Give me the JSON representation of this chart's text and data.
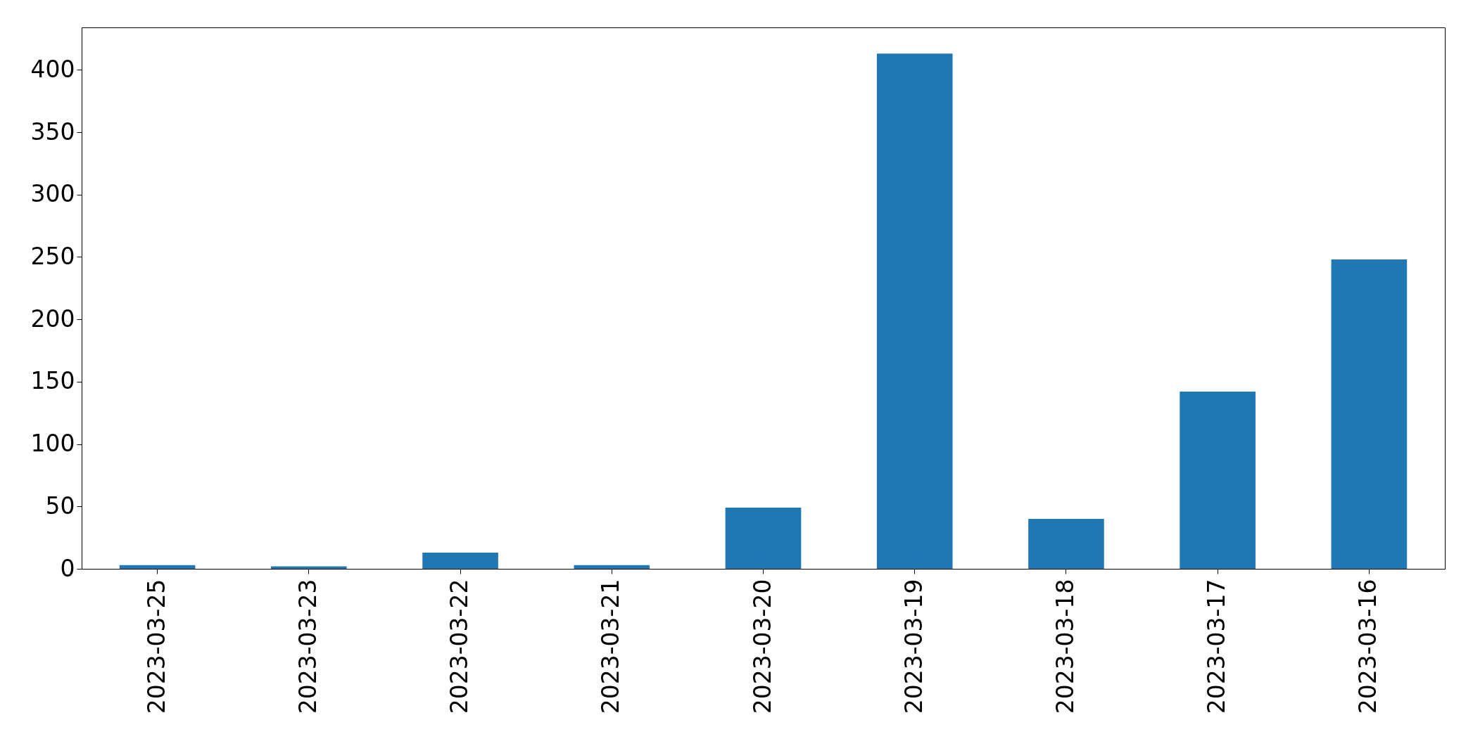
{
  "chart_data": {
    "type": "bar",
    "categories": [
      "2023-03-25",
      "2023-03-23",
      "2023-03-22",
      "2023-03-21",
      "2023-03-20",
      "2023-03-19",
      "2023-03-18",
      "2023-03-17",
      "2023-03-16"
    ],
    "values": [
      3,
      2,
      13,
      3,
      49,
      413,
      40,
      142,
      248
    ],
    "color": "#1f77b4",
    "ylim": [
      0,
      434
    ],
    "yticks": [
      0,
      50,
      100,
      150,
      200,
      250,
      300,
      350,
      400
    ]
  }
}
